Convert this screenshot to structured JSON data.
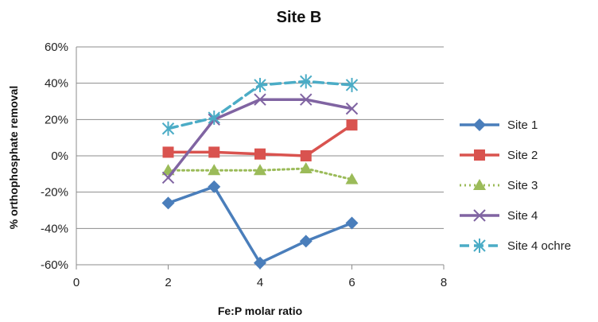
{
  "chart_data": {
    "type": "line",
    "title": "Site B",
    "xlabel": "Fe:P molar ratio",
    "ylabel": "% orthophosphate  removal",
    "xlim": [
      0,
      8
    ],
    "ylim": [
      -60,
      60
    ],
    "x_ticks": [
      "0",
      "2",
      "4",
      "6",
      "8"
    ],
    "y_ticks": [
      "60%",
      "40%",
      "20%",
      "0%",
      "-20%",
      "-40%",
      "-60%"
    ],
    "grid": "horizontal",
    "legend_position": "right",
    "series": [
      {
        "name": "Site 1",
        "color": "#4a7ebb",
        "marker": "diamond",
        "line": "solid",
        "x": [
          2,
          3,
          4,
          5,
          6
        ],
        "y": [
          -26,
          -17,
          -59,
          -47,
          -37
        ]
      },
      {
        "name": "Site 2",
        "color": "#d9534f",
        "marker": "square",
        "line": "solid",
        "x": [
          2,
          3,
          4,
          5,
          6
        ],
        "y": [
          2,
          2,
          1,
          0,
          17
        ]
      },
      {
        "name": "Site 3",
        "color": "#9bbb59",
        "marker": "triangle",
        "line": "dotted",
        "x": [
          2,
          3,
          4,
          5,
          6
        ],
        "y": [
          -8,
          -8,
          -8,
          -7,
          -13
        ]
      },
      {
        "name": "Site 4",
        "color": "#8064a2",
        "marker": "x",
        "line": "solid",
        "x": [
          2,
          3,
          4,
          5,
          6
        ],
        "y": [
          -12,
          20,
          31,
          31,
          26
        ]
      },
      {
        "name": "Site 4 ochre",
        "color": "#4bacc6",
        "marker": "star",
        "line": "dashed",
        "x": [
          2,
          3,
          4,
          5,
          6
        ],
        "y": [
          15,
          21,
          39,
          41,
          39
        ]
      }
    ]
  }
}
